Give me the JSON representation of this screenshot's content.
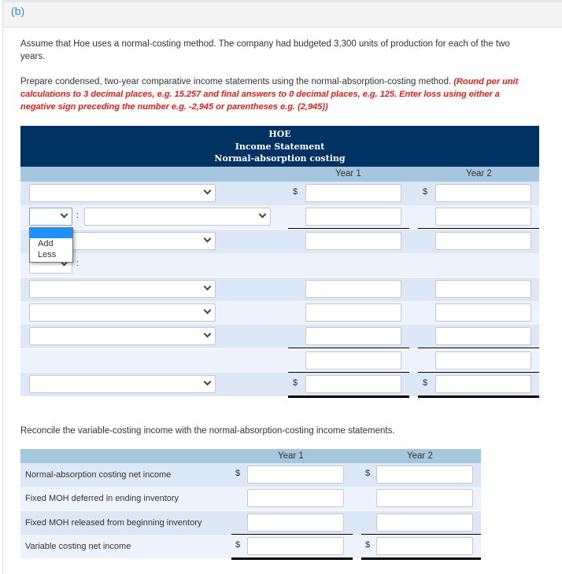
{
  "part_label": "(b)",
  "intro": "Assume that Hoe uses a normal-costing method. The company had budgeted 3,300 units of production for each of the two years.",
  "instruction": "Prepare condensed, two-year comparative income statements using the normal-absorption-costing method.",
  "instruction_note": "(Round per unit calculations to 3 decimal places, e.g. 15.257 and final answers to 0 decimal places, e.g. 125. Enter loss using either a negative sign preceding the number e.g. -2,945 or parentheses e.g. (2,945))",
  "income_statement": {
    "company": "HOE",
    "title": "Income Statement",
    "subtitle": "Normal-absorption costing",
    "columns": [
      "Year 1",
      "Year 2"
    ],
    "currency_symbol": "$",
    "dropdown_options": [
      "",
      "Add",
      "Less"
    ]
  },
  "reconcile": {
    "prompt": "Reconcile the variable-costing income with the normal-absorption-costing income statements.",
    "columns": [
      "Year 1",
      "Year 2"
    ],
    "currency_symbol": "$",
    "rows": [
      "Normal-absorption costing net income",
      "Fixed MOH deferred in ending inventory",
      "Fixed MOH released from beginning inventory",
      "Variable costing net income"
    ]
  },
  "colors": {
    "header": "#003263",
    "subheader": "#a6c6de",
    "row_dark": "#dde8f6",
    "row_light": "#edf3fc",
    "note": "#e0201b",
    "part": "#2a8fd6"
  }
}
